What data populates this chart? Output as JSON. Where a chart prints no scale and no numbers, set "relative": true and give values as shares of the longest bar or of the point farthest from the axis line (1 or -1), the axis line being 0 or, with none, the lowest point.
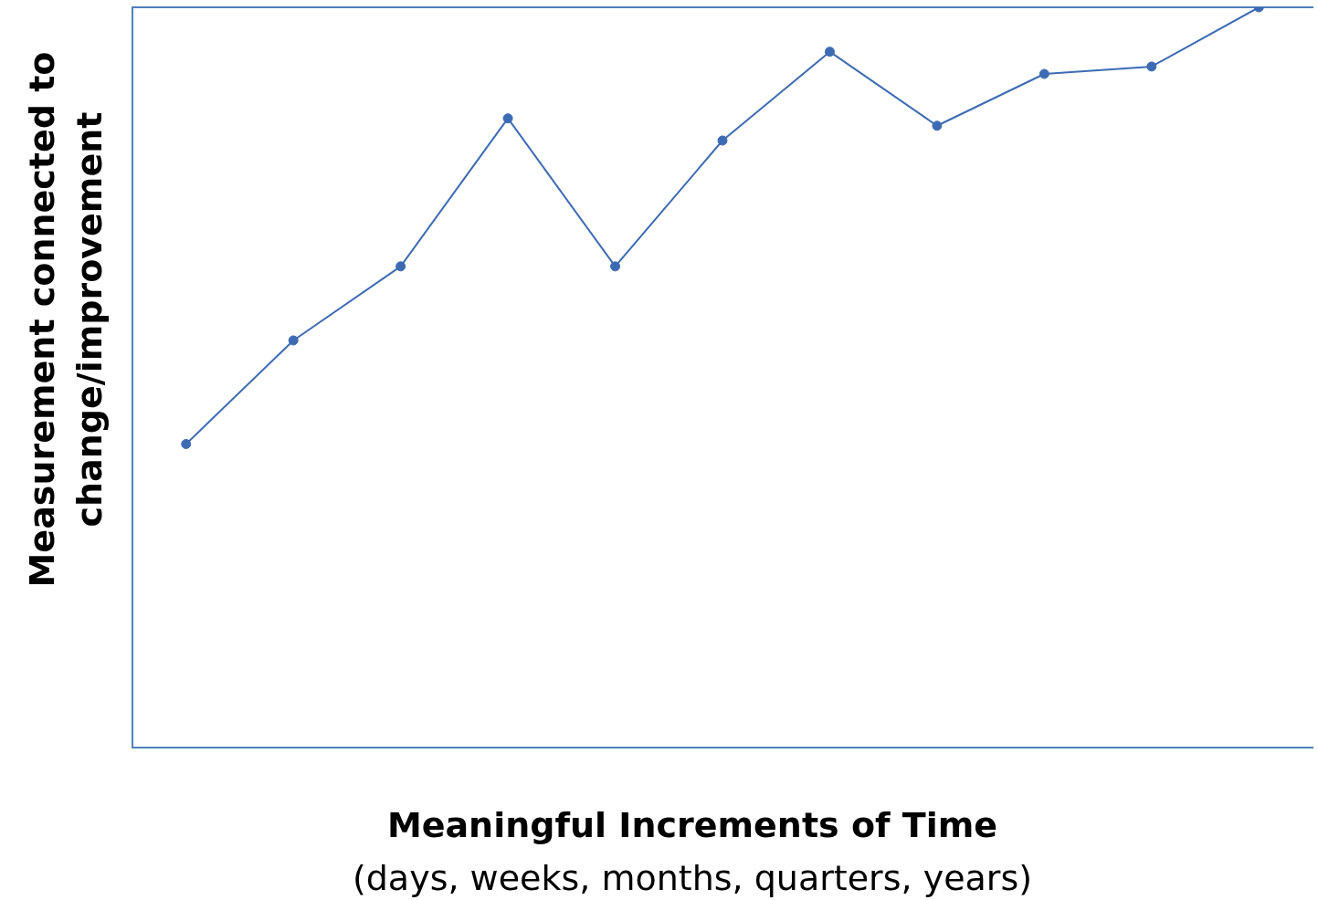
{
  "chart_data": {
    "type": "line",
    "relative": true,
    "xlabel": "Meaningful Increments of Time\n(days, weeks, months, quarters, years)",
    "ylabel": "Measurement connected to\nchange/improvement",
    "categories": [
      null,
      null,
      null,
      null,
      null,
      null,
      null,
      null,
      null,
      null,
      null
    ],
    "series": [
      {
        "color": "#3d6bb3",
        "values": [
          0.41,
          0.55,
          0.65,
          0.85,
          0.65,
          0.82,
          0.94,
          0.84,
          0.91,
          0.92,
          1.0
        ]
      }
    ],
    "marker": "circle",
    "line_style": "solid",
    "grid": false,
    "legend": false
  }
}
